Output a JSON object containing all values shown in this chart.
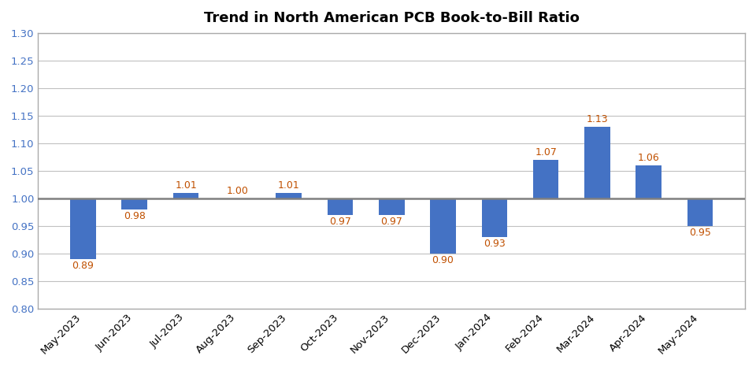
{
  "title": "Trend in North American PCB Book-to-Bill Ratio",
  "categories": [
    "May-2023",
    "Jun-2023",
    "Jul-2023",
    "Aug-2023",
    "Sep-2023",
    "Oct-2023",
    "Nov-2023",
    "Dec-2023",
    "Jan-2024",
    "Feb-2024",
    "Mar-2024",
    "Apr-2024",
    "May-2024"
  ],
  "values": [
    0.89,
    0.98,
    1.01,
    1.0,
    1.01,
    0.97,
    0.97,
    0.9,
    0.93,
    1.07,
    1.13,
    1.06,
    0.95
  ],
  "bar_color": "#4472C4",
  "label_color": "#C05000",
  "ytick_color": "#4472C4",
  "ylim": [
    0.8,
    1.3
  ],
  "yticks": [
    0.8,
    0.85,
    0.9,
    0.95,
    1.0,
    1.05,
    1.1,
    1.15,
    1.2,
    1.25,
    1.3
  ],
  "reference_line": 1.0,
  "reference_line_color": "#808080",
  "background_color": "#ffffff",
  "grid_color": "#c0c0c0",
  "title_fontsize": 13,
  "label_fontsize": 9,
  "tick_fontsize": 9.5,
  "bar_width": 0.5,
  "border_color": "#aaaaaa"
}
